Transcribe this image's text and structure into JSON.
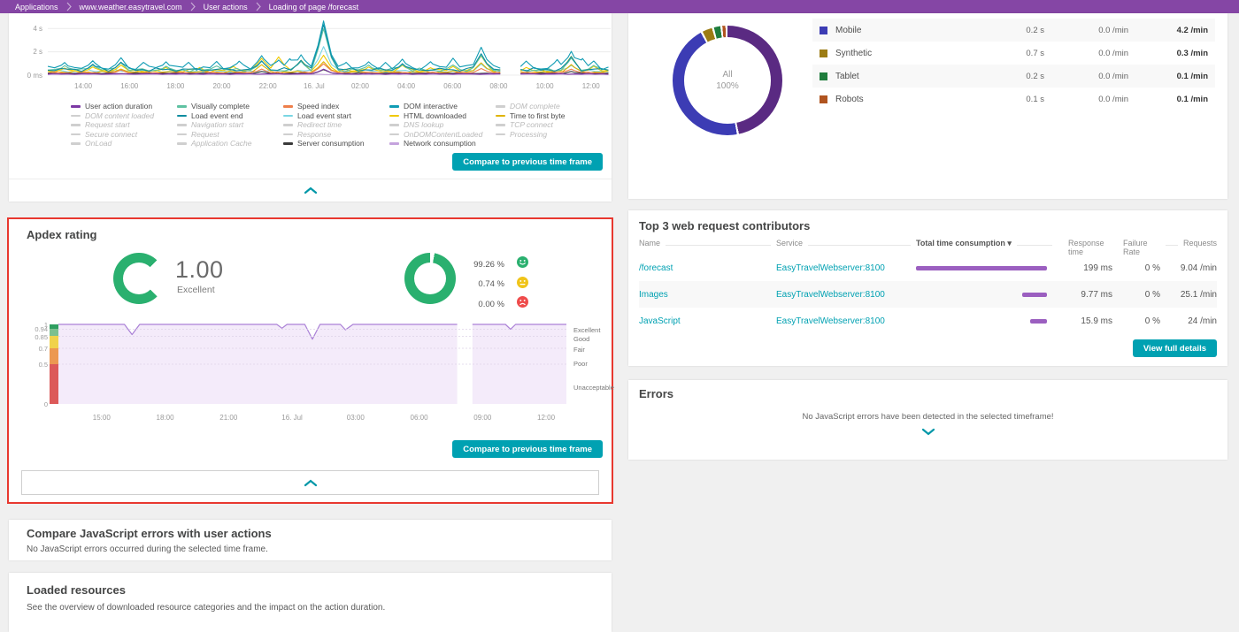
{
  "breadcrumb": {
    "bg_color": "#8546a5",
    "items": [
      "Applications",
      "www.weather.easytravel.com",
      "User actions",
      "Loading of page /forecast"
    ]
  },
  "panels": {
    "action_chart": {
      "compare_button": "Compare to previous time frame",
      "legend_columns": [
        [
          {
            "label": "User action duration",
            "color": "#7c38a4",
            "active": true
          },
          {
            "label": "DOM content loaded",
            "color": "",
            "active": false
          },
          {
            "label": "Request start",
            "color": "",
            "active": false
          },
          {
            "label": "Secure connect",
            "color": "",
            "active": false
          },
          {
            "label": "OnLoad",
            "color": "",
            "active": false
          }
        ],
        [
          {
            "label": "Visually complete",
            "color": "#5fc2a2",
            "active": true
          },
          {
            "label": "Load event end",
            "color": "#0d8ca0",
            "active": true
          },
          {
            "label": "Navigation start",
            "color": "",
            "active": false
          },
          {
            "label": "Request",
            "color": "",
            "active": false
          },
          {
            "label": "Application Cache",
            "color": "",
            "active": false
          }
        ],
        [
          {
            "label": "Speed index",
            "color": "#ee7f4b",
            "active": true
          },
          {
            "label": "Load event start",
            "color": "#79d6e3",
            "active": true
          },
          {
            "label": "Redirect time",
            "color": "",
            "active": false
          },
          {
            "label": "Response",
            "color": "",
            "active": false
          },
          {
            "label": "Server consumption",
            "color": "#3a3a3a",
            "active": true
          }
        ],
        [
          {
            "label": "DOM interactive",
            "color": "#109cb4",
            "active": true
          },
          {
            "label": "HTML downloaded",
            "color": "#f0c900",
            "active": true
          },
          {
            "label": "DNS lookup",
            "color": "",
            "active": false
          },
          {
            "label": "OnDOMContentLoaded",
            "color": "",
            "active": false
          },
          {
            "label": "Network consumption",
            "color": "#c5a3dd",
            "active": true
          }
        ],
        [
          {
            "label": "DOM complete",
            "color": "",
            "active": false
          },
          {
            "label": "Time to first byte",
            "color": "#dfb300",
            "active": true
          },
          {
            "label": "TCP connect",
            "color": "",
            "active": false
          },
          {
            "label": "Processing",
            "color": "",
            "active": false
          }
        ]
      ]
    },
    "user_breakdown": {
      "center_label": "All",
      "center_value": "100%",
      "rows": [
        {
          "label": "Mobile",
          "color": "#3c3cb4",
          "avg_duration": "0.2 s",
          "error_rate": "0.0 /min",
          "request_rate": "4.2 /min"
        },
        {
          "label": "Synthetic",
          "color": "#9c7c14",
          "avg_duration": "0.7 s",
          "error_rate": "0.0 /min",
          "request_rate": "0.3 /min"
        },
        {
          "label": "Tablet",
          "color": "#1f7d3d",
          "avg_duration": "0.2 s",
          "error_rate": "0.0 /min",
          "request_rate": "0.1 /min"
        },
        {
          "label": "Robots",
          "color": "#b0541f",
          "avg_duration": "0.1 s",
          "error_rate": "0.0 /min",
          "request_rate": "0.1 /min"
        }
      ]
    },
    "apdex": {
      "title": "Apdex rating",
      "score": "1.00",
      "score_label": "Excellent",
      "gauge_color": "#2ab06f",
      "breakdown": [
        {
          "value": "99.26 %",
          "mood": "happy",
          "color": "#2ab06f"
        },
        {
          "value": "0.74 %",
          "mood": "neutral",
          "color": "#f0c419"
        },
        {
          "value": "0.00 %",
          "mood": "sad",
          "color": "#ef4b4b"
        }
      ],
      "compare_button": "Compare to previous time frame"
    },
    "top3": {
      "title": "Top 3 web request contributors",
      "headers": [
        "Name",
        "Service",
        "Total time consumption ▾",
        "Response time",
        "Failure Rate",
        "Requests"
      ],
      "rows": [
        {
          "name": "/forecast",
          "service": "EasyTravelWebserver:8100",
          "consumption_pct": 100,
          "response_time": "199 ms",
          "failure_rate": "0 %",
          "requests": "9.04 /min"
        },
        {
          "name": "Images",
          "service": "EasyTravelWebserver:8100",
          "consumption_pct": 19,
          "response_time": "9.77 ms",
          "failure_rate": "0 %",
          "requests": "25.1 /min"
        },
        {
          "name": "JavaScript",
          "service": "EasyTravelWebserver:8100",
          "consumption_pct": 13,
          "response_time": "15.9 ms",
          "failure_rate": "0 %",
          "requests": "24 /min"
        }
      ],
      "details_button": "View full details"
    },
    "errors": {
      "title": "Errors",
      "message": "No JavaScript errors have been detected in the selected timeframe!"
    },
    "compare_js": {
      "title": "Compare JavaScript errors with user actions",
      "message": "No JavaScript errors occurred during the selected time frame."
    },
    "loaded_resources": {
      "title": "Loaded resources",
      "message": "See the overview of downloaded resource categories and the impact on the action duration."
    }
  },
  "chart_data": [
    {
      "id": "user-action-timings",
      "type": "line",
      "ylim_s": [
        0,
        4.8
      ],
      "y_ticks": [
        {
          "v": 4,
          "label": "4 s"
        },
        {
          "v": 2,
          "label": "2 s"
        },
        {
          "v": 0,
          "label": "0 ms"
        }
      ],
      "x_ticks": [
        "14:00",
        "16:00",
        "18:00",
        "20:00",
        "22:00",
        "16. Jul",
        "02:00",
        "04:00",
        "06:00",
        "08:00",
        "10:00",
        "12:00"
      ],
      "x_tick_start_pct": 6.3,
      "x_tick_step_pct": 8.2,
      "gap_x_pct": [
        80.8,
        83.8
      ],
      "series": [
        {
          "name": "Load event start",
          "color": "#79d6e3",
          "base_s": 0.3,
          "noise_s": 0.1,
          "peaks": [
            [
              49,
              2.4
            ],
            [
              77,
              0.9
            ],
            [
              93,
              0.8
            ]
          ]
        },
        {
          "name": "Time to first byte",
          "color": "#dfb300",
          "base_s": 0.22,
          "noise_s": 0.09,
          "peaks": [
            [
              13,
              0.5
            ],
            [
              38,
              0.85
            ],
            [
              49,
              1.1
            ],
            [
              77,
              1.0
            ],
            [
              93,
              0.85
            ]
          ]
        },
        {
          "name": "HTML downloaded",
          "color": "#f0c900",
          "base_s": 0.3,
          "noise_s": 0.14,
          "peaks": [
            [
              3,
              0.55
            ],
            [
              8,
              0.65
            ],
            [
              13,
              0.8
            ],
            [
              21,
              0.6
            ],
            [
              27,
              0.6
            ],
            [
              33,
              0.7
            ],
            [
              38,
              1.4
            ],
            [
              41,
              1.5
            ],
            [
              45,
              1.25
            ],
            [
              49,
              1.65
            ],
            [
              57,
              0.65
            ],
            [
              63,
              0.8
            ],
            [
              68,
              0.6
            ],
            [
              72,
              0.7
            ],
            [
              77,
              1.6
            ],
            [
              85,
              0.6
            ],
            [
              93,
              1.55
            ],
            [
              97,
              0.7
            ]
          ]
        },
        {
          "name": "Speed index",
          "color": "#ee7f4b",
          "base_s": 0.17,
          "noise_s": 0.06,
          "peaks": [
            [
              13,
              0.4
            ],
            [
              38,
              0.5
            ],
            [
              49,
              0.95
            ],
            [
              77,
              0.55
            ],
            [
              93,
              0.5
            ]
          ]
        },
        {
          "name": "Visually complete",
          "color": "#5fc2a2",
          "base_s": 0.38,
          "noise_s": 0.12,
          "peaks": [
            [
              3,
              0.75
            ],
            [
              8,
              0.8
            ],
            [
              13,
              1.0
            ],
            [
              21,
              0.7
            ],
            [
              30,
              0.75
            ],
            [
              38,
              1.1
            ],
            [
              45,
              1.1
            ],
            [
              49,
              3.9
            ],
            [
              57,
              0.8
            ],
            [
              63,
              0.85
            ],
            [
              72,
              0.8
            ],
            [
              77,
              1.6
            ],
            [
              93,
              1.4
            ],
            [
              97,
              0.8
            ]
          ]
        },
        {
          "name": "Load event end",
          "color": "#0d8ca0",
          "base_s": 0.42,
          "noise_s": 0.11,
          "peaks": [
            [
              8,
              0.85
            ],
            [
              13,
              1.05
            ],
            [
              38,
              1.15
            ],
            [
              45,
              1.2
            ],
            [
              49,
              4.25
            ],
            [
              63,
              0.9
            ],
            [
              77,
              1.75
            ],
            [
              93,
              1.5
            ]
          ]
        },
        {
          "name": "DOM interactive",
          "color": "#109cb4",
          "base_s": 0.55,
          "noise_s": 0.16,
          "peaks": [
            [
              3,
              1.0
            ],
            [
              8,
              1.15
            ],
            [
              13,
              1.4
            ],
            [
              17,
              1.0
            ],
            [
              21,
              1.05
            ],
            [
              25,
              1.0
            ],
            [
              30,
              1.05
            ],
            [
              34,
              1.1
            ],
            [
              38,
              1.6
            ],
            [
              41,
              1.2
            ],
            [
              43,
              1.35
            ],
            [
              45,
              1.65
            ],
            [
              49,
              4.55
            ],
            [
              53,
              1.0
            ],
            [
              57,
              1.05
            ],
            [
              60,
              1.0
            ],
            [
              63,
              1.25
            ],
            [
              68,
              1.05
            ],
            [
              72,
              1.35
            ],
            [
              77,
              2.3
            ],
            [
              85,
              1.1
            ],
            [
              90.5,
              1.2
            ],
            [
              93,
              1.95
            ],
            [
              95,
              1.3
            ],
            [
              97,
              1.1
            ]
          ]
        },
        {
          "name": "Server consumption",
          "color": "#3a3a3a",
          "base_s": 0.12,
          "noise_s": 0.03,
          "peaks": [
            [
              38,
              0.3
            ],
            [
              49,
              0.45
            ],
            [
              93,
              0.3
            ]
          ]
        },
        {
          "name": "Network consumption",
          "color": "#c5a3dd",
          "base_s": 0.05,
          "noise_s": 0.02,
          "peaks": []
        },
        {
          "name": "User action duration",
          "color": "#7c38a4",
          "base_s": 0.09,
          "noise_s": 0.03,
          "peaks": [
            [
              49,
              0.5
            ]
          ]
        }
      ]
    },
    {
      "id": "user-type-breakdown",
      "type": "pie",
      "center_label": "All",
      "center_value": "100%",
      "segments": [
        {
          "label": "",
          "color": "#5a2a82",
          "pct": 46.5
        },
        {
          "label": "Mobile",
          "color": "#3c3cb4",
          "pct": 44.5
        },
        {
          "label": "Synthetic",
          "color": "#9c7c14",
          "pct": 2.9
        },
        {
          "label": "Tablet",
          "color": "#1f7d3d",
          "pct": 1.9
        },
        {
          "label": "Robots",
          "color": "#b0541f",
          "pct": 0.9
        }
      ]
    },
    {
      "id": "apdex-trend",
      "type": "area",
      "ylim": [
        0,
        1
      ],
      "y_ticks": [
        1,
        0.94,
        0.85,
        0.7,
        0.5,
        0
      ],
      "line_color": "#aa80d6",
      "fill_color": "#f4ebfa",
      "bands": [
        {
          "label": "Excellent",
          "from": 0.94,
          "color": "#2f9e60"
        },
        {
          "label": "Good",
          "from": 0.85,
          "color": "#7cc08f"
        },
        {
          "label": "Fair",
          "from": 0.7,
          "color": "#f0d24b"
        },
        {
          "label": "Poor",
          "from": 0.5,
          "color": "#ec9851"
        },
        {
          "label": "Unacceptable",
          "from": 0,
          "color": "#dc5959"
        }
      ],
      "x_ticks": [
        "15:00",
        "18:00",
        "21:00",
        "16. Jul",
        "03:00",
        "06:00",
        "09:00",
        "12:00"
      ],
      "x_tick_start_pct": 8.5,
      "x_tick_step_pct": 12.5,
      "segments": [
        [
          [
            0,
            1
          ],
          [
            13,
            1
          ],
          [
            14.5,
            0.872
          ],
          [
            16,
            1
          ],
          [
            43,
            1
          ],
          [
            44,
            0.952
          ],
          [
            45,
            1
          ],
          [
            48.5,
            1
          ],
          [
            50,
            0.815
          ],
          [
            51.5,
            1
          ],
          [
            55.5,
            1
          ],
          [
            56.5,
            0.932
          ],
          [
            58,
            1
          ],
          [
            78.5,
            1
          ]
        ],
        [
          [
            81.5,
            1
          ],
          [
            88,
            1
          ],
          [
            89,
            0.94
          ],
          [
            90,
            1
          ],
          [
            100,
            1
          ]
        ]
      ]
    }
  ]
}
